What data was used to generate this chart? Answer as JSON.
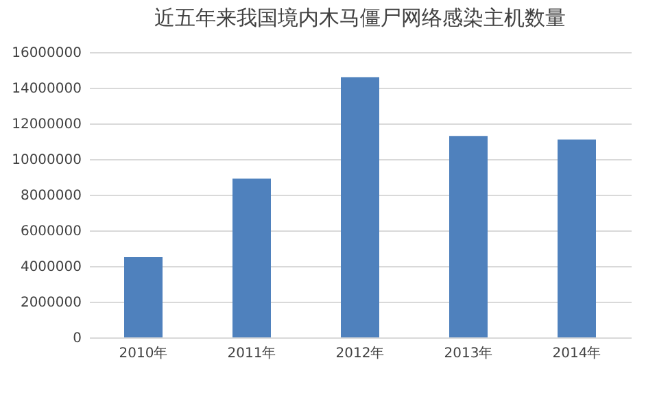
{
  "chart_data": {
    "type": "bar",
    "title": "近五年来我国境内木马僵尸网络感染主机数量",
    "categories": [
      "2010年",
      "2011年",
      "2012年",
      "2013年",
      "2014年"
    ],
    "values": [
      4500000,
      8900000,
      14600000,
      11300000,
      11100000
    ],
    "color": "#4f81bd",
    "ylim": [
      0,
      16000000
    ],
    "yticks": [
      0,
      2000000,
      4000000,
      6000000,
      8000000,
      10000000,
      12000000,
      14000000,
      16000000
    ],
    "grid": "y"
  }
}
